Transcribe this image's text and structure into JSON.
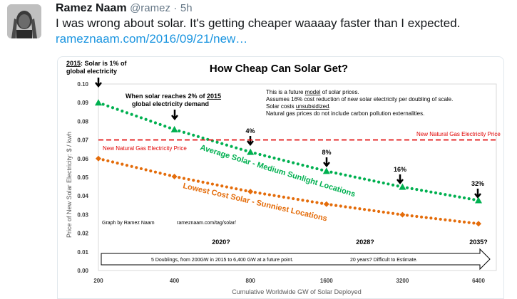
{
  "tweet": {
    "author_name": "Ramez Naam",
    "handle": "@ramez",
    "separator": "·",
    "time": "5h",
    "text": "I was wrong about solar. It's getting cheaper waaaay faster than I expected.",
    "link": "rameznaam.com/2016/09/21/new…"
  },
  "chart_data": {
    "type": "line",
    "title": "How Cheap Can Solar Get?",
    "xlabel": "Cumulative Worldwide GW of Solar Deployed",
    "ylabel": "Price of New Solar Electricity: $ / kwh",
    "x_scale": "log2",
    "x": [
      200,
      400,
      800,
      1600,
      3200,
      6400
    ],
    "x_tick_labels": [
      "200",
      "400",
      "800",
      "1600",
      "3200",
      "6400"
    ],
    "ylim": [
      0,
      0.1
    ],
    "y_ticks": [
      0.0,
      0.01,
      0.02,
      0.03,
      0.04,
      0.05,
      0.06,
      0.07,
      0.08,
      0.09,
      0.1
    ],
    "y_tick_labels": [
      "0.00",
      "0.01",
      "0.02",
      "0.03",
      "0.04",
      "0.05",
      "0.06",
      "0.07",
      "0.08",
      "0.09",
      "0.10"
    ],
    "series": [
      {
        "name": "Average Solar - Medium Sunlight Locations",
        "color": "#00b050",
        "style": "dotted",
        "marker": "triangle",
        "values": [
          0.09,
          0.0756,
          0.0635,
          0.0533,
          0.0448,
          0.0376
        ]
      },
      {
        "name": "Lowest Cost Solar - Sunniest Locations",
        "color": "#e46c0a",
        "style": "dotted",
        "marker": "diamond",
        "values": [
          0.06,
          0.0504,
          0.0423,
          0.0356,
          0.0299,
          0.0251
        ]
      },
      {
        "name": "New Natural Gas Electricity Price",
        "color": "#e00000",
        "style": "dashed",
        "values": [
          0.07,
          0.07,
          0.07,
          0.07,
          0.07,
          0.07
        ]
      }
    ],
    "series_labels": {
      "average": "Average Solar - Medium Sunlight Locations",
      "lowest": "Lowest Cost Solar - Sunniest Locations",
      "gas_left": "New Natural Gas Electricity Price",
      "gas_right": "New Natural Gas Electricity Price"
    },
    "annotations": {
      "start_prefix": "2015",
      "start_rest": ": Solar is 1% of",
      "start_line2": "global electricity",
      "two_pct_line1_prefix": "When solar reaches 2% of ",
      "two_pct_line1_year": "2015",
      "two_pct_line2": "global electricity demand",
      "pct_4": "4%",
      "pct_8": "8%",
      "pct_16": "16%",
      "pct_32": "32%",
      "note1_prefix": "This is a future ",
      "note1_underlined": "model",
      "note1_suffix": " of solar prices.",
      "note2": "Assumes 16% cost reduction of new solar electricity per doubling of scale.",
      "note3_prefix": "Solar costs ",
      "note3_underlined": "unsubsidized",
      "note3_suffix": ".",
      "note4": "Natural gas prices do not include carbon pollution externalities.",
      "credit": "Graph by Ramez Naam",
      "url": "rameznaam.com/tag/solar/",
      "year_2020": "2020?",
      "year_2028": "2028?",
      "year_2035": "2035?",
      "doublings": "5 Doublings, from 200GW in 2015 to 6,400 GW at a future point.",
      "years_estimate": "20 years? Difficult to Estimate."
    },
    "grid": false,
    "legend": "none"
  }
}
